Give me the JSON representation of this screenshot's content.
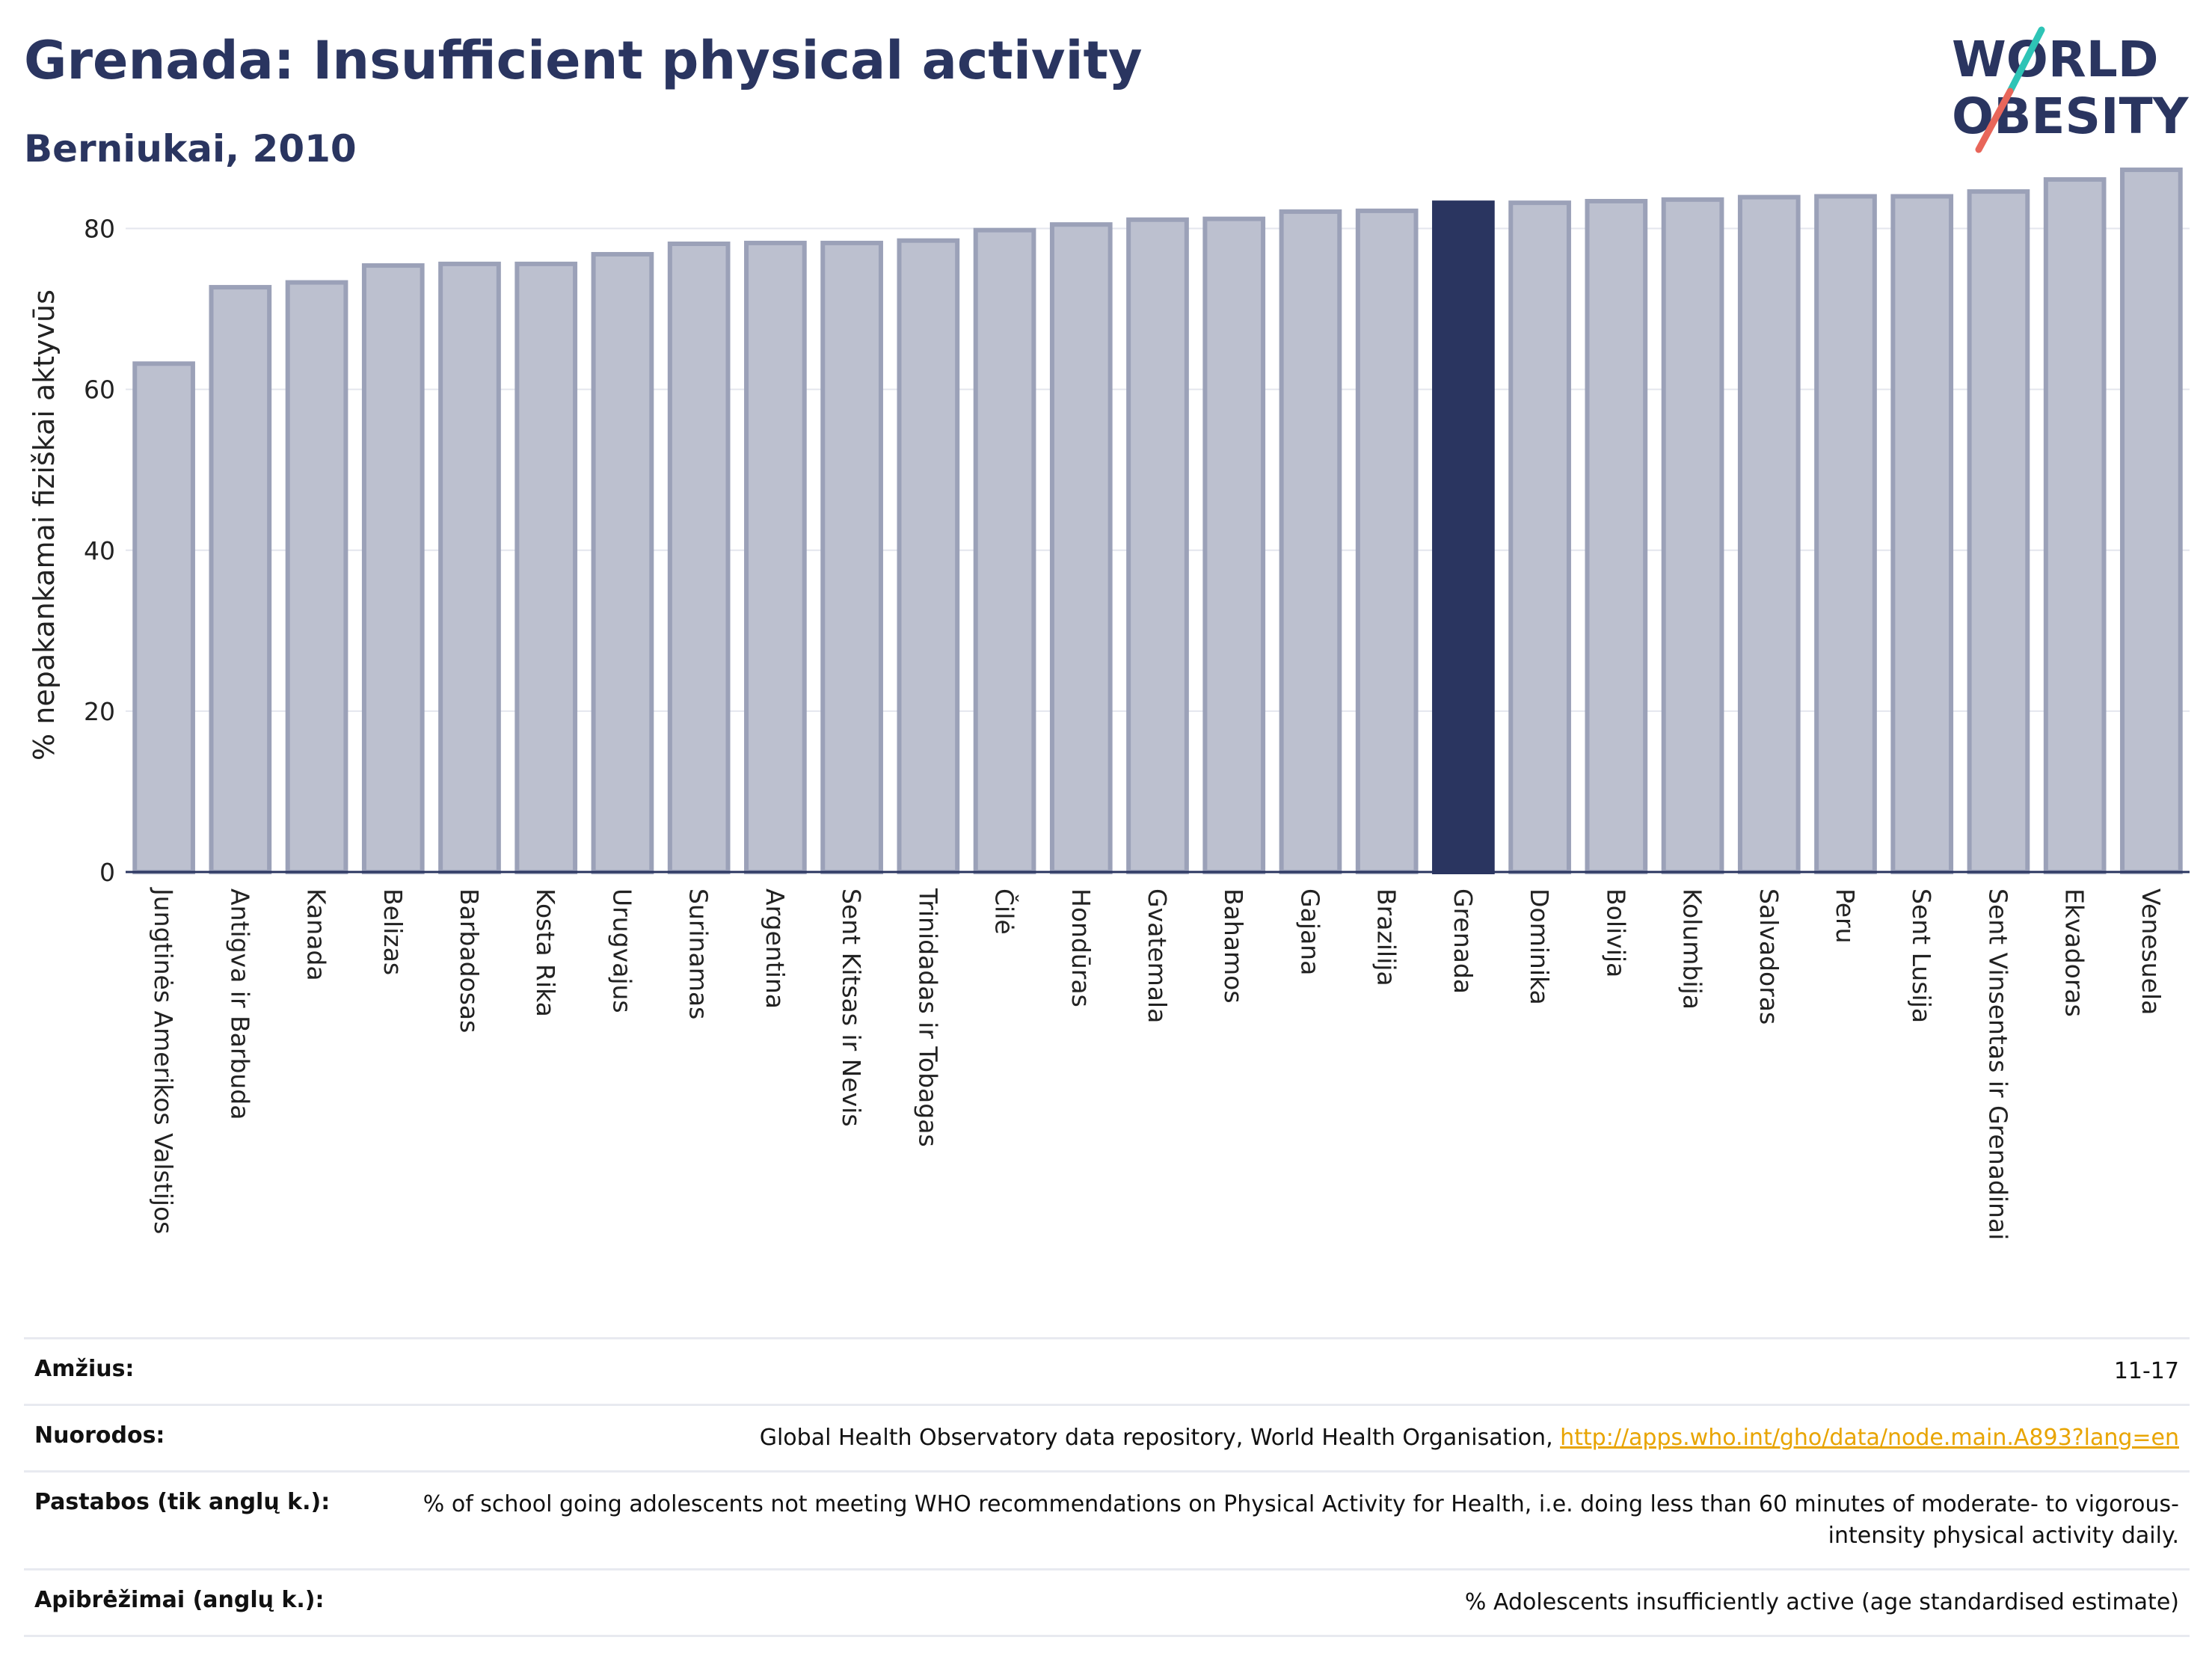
{
  "header": {
    "title": "Grenada: Insufficient physical activity",
    "subtitle": "Berniukai, 2010"
  },
  "logo": {
    "line1": "WORLD",
    "line2": "OBESITY",
    "accent_teal": "#2ec4b6",
    "accent_red": "#e8665a"
  },
  "colors": {
    "bar": "#bcc0cf",
    "bar_edge": "#9ba1b8",
    "highlight": "#2a3560"
  },
  "chart_data": {
    "type": "bar",
    "ylabel": "% nepakankamai fiziškai aktyvūs",
    "ylim": [
      0,
      90
    ],
    "yticks": [
      0,
      20,
      40,
      60,
      80
    ],
    "grid": true,
    "highlight": "Grenada",
    "categories": [
      "Jungtinės Amerikos Valstijos",
      "Antigva ir Barbuda",
      "Kanada",
      "Belizas",
      "Barbadosas",
      "Kosta Rika",
      "Urugvajus",
      "Surinamas",
      "Argentina",
      "Sent Kitsas ir Nevis",
      "Trinidadas ir Tobagas",
      "Čilė",
      "Hondūras",
      "Gvatemala",
      "Bahamos",
      "Gajana",
      "Brazilija",
      "Grenada",
      "Dominika",
      "Bolivija",
      "Kolumbija",
      "Salvadoras",
      "Peru",
      "Sent Lusija",
      "Sent Vinsentas ir Grenadinai",
      "Ekvadoras",
      "Venesuela"
    ],
    "values": [
      63.2,
      72.7,
      73.3,
      75.4,
      75.6,
      75.6,
      76.8,
      78.1,
      78.2,
      78.2,
      78.5,
      79.8,
      80.5,
      81.1,
      81.2,
      82.1,
      82.2,
      83.2,
      83.2,
      83.4,
      83.6,
      83.9,
      84.0,
      84.0,
      84.6,
      86.1,
      87.3
    ]
  },
  "meta": [
    {
      "key": "Amžius:",
      "value": "11-17"
    },
    {
      "key": "Nuorodos:",
      "value": "Global Health Observatory data repository, World Health Organisation, ",
      "link": "http://apps.who.int/gho/data/node.main.A893?lang=en"
    },
    {
      "key": "Pastabos (tik anglų k.):",
      "value": "% of school going adolescents not meeting WHO recommendations on Physical Activity for Health, i.e. doing less than 60 minutes of moderate- to vigorous-intensity physical activity daily."
    },
    {
      "key": "Apibrėžimai (anglų k.):",
      "value": "% Adolescents insufficiently active (age standardised estimate)"
    }
  ]
}
